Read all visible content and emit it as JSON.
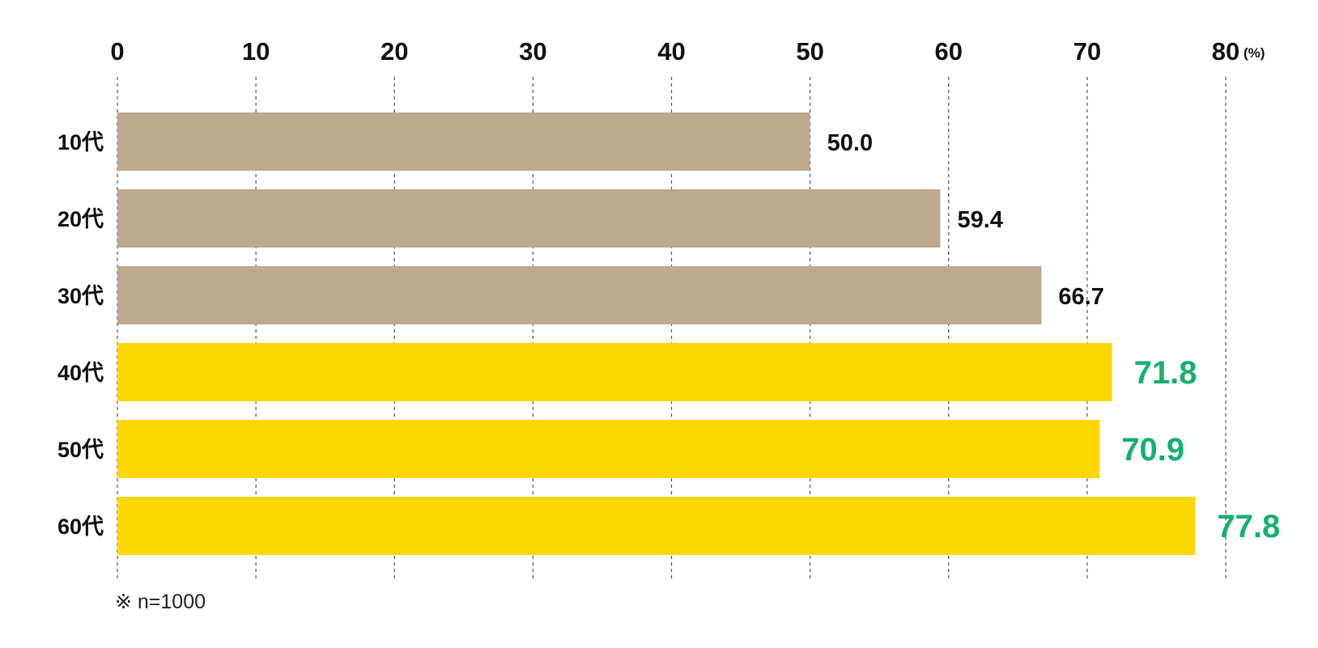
{
  "chart_data": {
    "type": "bar",
    "orientation": "horizontal",
    "categories": [
      "10代",
      "20代",
      "30代",
      "40代",
      "50代",
      "60代"
    ],
    "values": [
      50.0,
      59.4,
      66.7,
      71.8,
      70.9,
      77.8
    ],
    "value_labels": [
      "50.0",
      "59.4",
      "66.7",
      "71.8",
      "70.9",
      "77.8"
    ],
    "highlighted": [
      false,
      false,
      false,
      true,
      true,
      true
    ],
    "xlim": [
      0,
      80
    ],
    "xticks": [
      0,
      10,
      20,
      30,
      40,
      50,
      60,
      70,
      80
    ],
    "xtick_labels": [
      "0",
      "10",
      "20",
      "30",
      "40",
      "50",
      "60",
      "70",
      "80"
    ],
    "x_unit": "(%)",
    "grid": true,
    "note": "※ n=1000",
    "title": "",
    "xlabel": "",
    "ylabel": ""
  },
  "colors": {
    "bar_default": "#bca98f",
    "bar_highlight": "#fdd800",
    "label_default": "#111111",
    "label_highlight": "#14b06e",
    "grid": "#555555"
  }
}
